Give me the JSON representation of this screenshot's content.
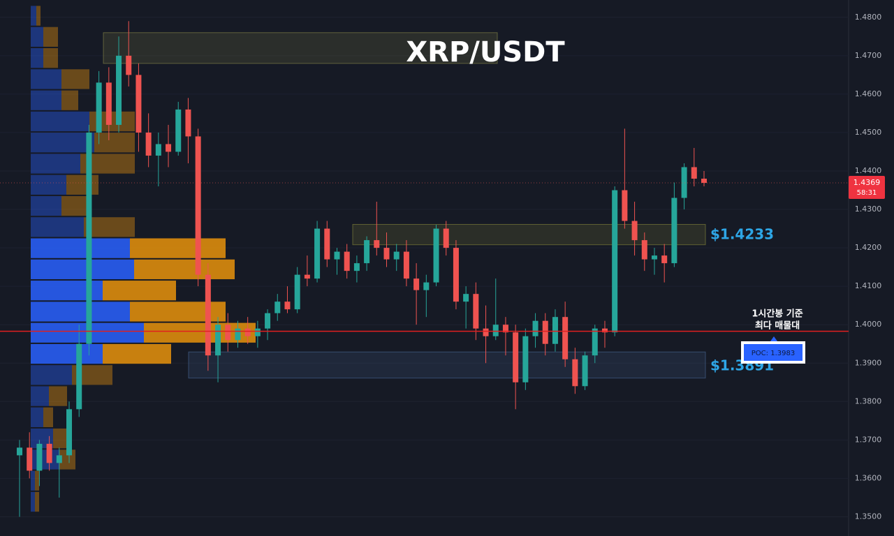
{
  "chart_data": {
    "type": "candlestick",
    "title": "XRP/USDT",
    "open": [
      1.366,
      1.368,
      1.362,
      1.369,
      1.364,
      1.366,
      1.378,
      1.395,
      1.45,
      1.463,
      1.452,
      1.47,
      1.465,
      1.45,
      1.444,
      1.447,
      1.445,
      1.456,
      1.449,
      1.413,
      1.392,
      1.4,
      1.396,
      1.399,
      1.397,
      1.399,
      1.403,
      1.406,
      1.404,
      1.413,
      1.412,
      1.425,
      1.417,
      1.419,
      1.414,
      1.416,
      1.422,
      1.42,
      1.417,
      1.419,
      1.412,
      1.409,
      1.411,
      1.425,
      1.42,
      1.406,
      1.408,
      1.399,
      1.397,
      1.4,
      1.398,
      1.385,
      1.397,
      1.401,
      1.395,
      1.402,
      1.391,
      1.384,
      1.392,
      1.399,
      1.398,
      1.435,
      1.427,
      1.422,
      1.417,
      1.418,
      1.416,
      1.433,
      1.441,
      1.438
    ],
    "high": [
      1.37,
      1.372,
      1.37,
      1.371,
      1.368,
      1.38,
      1.4,
      1.452,
      1.466,
      1.467,
      1.475,
      1.479,
      1.468,
      1.455,
      1.45,
      1.452,
      1.458,
      1.459,
      1.451,
      1.416,
      1.402,
      1.403,
      1.401,
      1.402,
      1.401,
      1.404,
      1.408,
      1.41,
      1.415,
      1.418,
      1.427,
      1.427,
      1.42,
      1.421,
      1.418,
      1.423,
      1.432,
      1.424,
      1.421,
      1.422,
      1.416,
      1.413,
      1.426,
      1.427,
      1.422,
      1.41,
      1.411,
      1.405,
      1.412,
      1.402,
      1.4,
      1.399,
      1.403,
      1.403,
      1.404,
      1.406,
      1.394,
      1.393,
      1.4,
      1.401,
      1.436,
      1.451,
      1.432,
      1.424,
      1.42,
      1.421,
      1.437,
      1.442,
      1.446,
      1.44
    ],
    "low": [
      1.35,
      1.36,
      1.358,
      1.362,
      1.355,
      1.364,
      1.376,
      1.392,
      1.447,
      1.448,
      1.45,
      1.462,
      1.445,
      1.441,
      1.436,
      1.441,
      1.444,
      1.442,
      1.41,
      1.388,
      1.385,
      1.393,
      1.394,
      1.395,
      1.394,
      1.396,
      1.401,
      1.403,
      1.403,
      1.41,
      1.411,
      1.415,
      1.413,
      1.412,
      1.411,
      1.414,
      1.418,
      1.415,
      1.414,
      1.41,
      1.4,
      1.402,
      1.41,
      1.418,
      1.404,
      1.399,
      1.396,
      1.39,
      1.396,
      1.392,
      1.378,
      1.383,
      1.394,
      1.392,
      1.393,
      1.389,
      1.382,
      1.383,
      1.39,
      1.394,
      1.397,
      1.425,
      1.418,
      1.414,
      1.413,
      1.411,
      1.415,
      1.43,
      1.436,
      1.436
    ],
    "close": [
      1.368,
      1.362,
      1.369,
      1.364,
      1.366,
      1.378,
      1.395,
      1.45,
      1.463,
      1.452,
      1.47,
      1.465,
      1.45,
      1.444,
      1.447,
      1.445,
      1.456,
      1.449,
      1.413,
      1.392,
      1.4,
      1.396,
      1.399,
      1.397,
      1.399,
      1.403,
      1.406,
      1.404,
      1.413,
      1.412,
      1.425,
      1.417,
      1.419,
      1.414,
      1.416,
      1.422,
      1.42,
      1.417,
      1.419,
      1.412,
      1.409,
      1.411,
      1.425,
      1.42,
      1.406,
      1.408,
      1.399,
      1.397,
      1.4,
      1.398,
      1.385,
      1.397,
      1.401,
      1.395,
      1.402,
      1.391,
      1.384,
      1.392,
      1.399,
      1.398,
      1.435,
      1.427,
      1.422,
      1.417,
      1.418,
      1.416,
      1.433,
      1.441,
      1.438,
      1.4369
    ],
    "up_color": "#26a69a",
    "down_color": "#ef5350",
    "ylim": [
      1.345,
      1.4845
    ],
    "yticks": [
      {
        "value": 1.48,
        "label": "1.4800"
      },
      {
        "value": 1.47,
        "label": "1.4700"
      },
      {
        "value": 1.46,
        "label": "1.4600"
      },
      {
        "value": 1.45,
        "label": "1.4500"
      },
      {
        "value": 1.44,
        "label": "1.4400"
      },
      {
        "value": 1.43,
        "label": "1.4300"
      },
      {
        "value": 1.42,
        "label": "1.4200"
      },
      {
        "value": 1.41,
        "label": "1.4100"
      },
      {
        "value": 1.4,
        "label": "1.4000"
      },
      {
        "value": 1.39,
        "label": "1.3900"
      },
      {
        "value": 1.38,
        "label": "1.3800"
      },
      {
        "value": 1.37,
        "label": "1.3700"
      },
      {
        "value": 1.36,
        "label": "1.3600"
      },
      {
        "value": 1.35,
        "label": "1.3500"
      }
    ],
    "grid": true,
    "volume_profile": {
      "levels": [
        1.4804,
        1.4749,
        1.4694,
        1.4639,
        1.4584,
        1.4529,
        1.4474,
        1.4419,
        1.4364,
        1.4309,
        1.4254,
        1.4199,
        1.4144,
        1.4089,
        1.4034,
        1.3979,
        1.3924,
        1.3869,
        1.3814,
        1.3759,
        1.3704,
        1.3649,
        1.3594,
        1.3539
      ],
      "buy": [
        8,
        18,
        18,
        44,
        44,
        84,
        91,
        71,
        51,
        44,
        76,
        142,
        148,
        103,
        142,
        162,
        103,
        59,
        26,
        18,
        32,
        41,
        6,
        6
      ],
      "sell": [
        6,
        21,
        21,
        40,
        24,
        65,
        58,
        78,
        46,
        40,
        73,
        137,
        144,
        105,
        137,
        160,
        98,
        58,
        26,
        14,
        27,
        23,
        6,
        6
      ],
      "buy_color": "#2962ff",
      "sell_color": "#e8930c"
    },
    "zones": [
      {
        "low": 1.468,
        "high": 1.476
      },
      {
        "low": 1.4208,
        "high": 1.4261,
        "level": 1.4233,
        "label": "$1.4233"
      },
      {
        "low": 1.3861,
        "high": 1.3929,
        "level": 1.3891,
        "label": "$1.3891"
      }
    ],
    "poc": 1.3983,
    "poc_label": "POC: 1.3983",
    "annotation": [
      "1시간봉 기준",
      "최다 매물대"
    ],
    "last_price": 1.4369,
    "last_price_label": "1.4369",
    "countdown": "58:31"
  }
}
